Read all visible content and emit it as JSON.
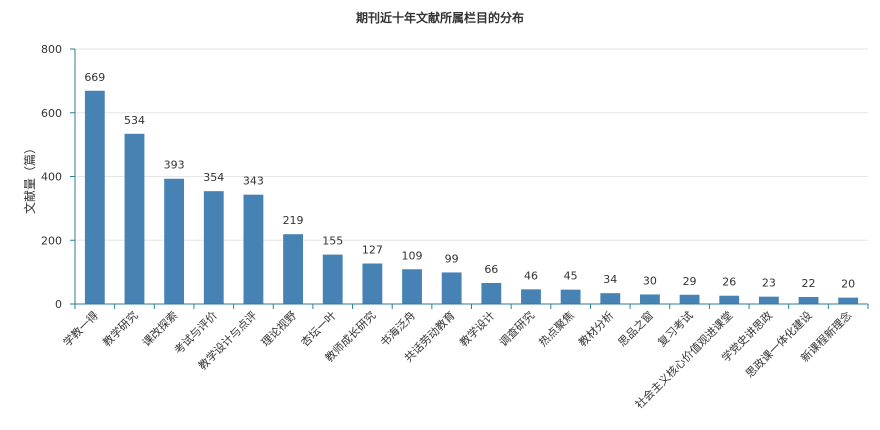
{
  "chart_data": {
    "type": "bar",
    "title": "期刊近十年文献所属栏目的分布",
    "xlabel": "",
    "ylabel": "文献量（篇）",
    "ylim": [
      0,
      800
    ],
    "yticks": [
      0,
      200,
      400,
      600,
      800
    ],
    "grid": true,
    "legend": "none",
    "bar_color": "#4682b4",
    "categories": [
      "学教一得",
      "教学研究",
      "课改探索",
      "考试与评价",
      "教学设计与点评",
      "理论视野",
      "杏坛一叶",
      "教师成长研究",
      "书海泛舟",
      "共话劳动教育",
      "教学设计",
      "调查研究",
      "热点聚焦",
      "教材分析",
      "思品之窗",
      "复习考试",
      "社会主义核心价值观进课堂",
      "学党史讲思政",
      "思政课一体化建设",
      "新课程新理念"
    ],
    "values": [
      669,
      534,
      393,
      354,
      343,
      219,
      155,
      127,
      109,
      99,
      66,
      46,
      45,
      34,
      30,
      29,
      26,
      23,
      22,
      20
    ]
  }
}
